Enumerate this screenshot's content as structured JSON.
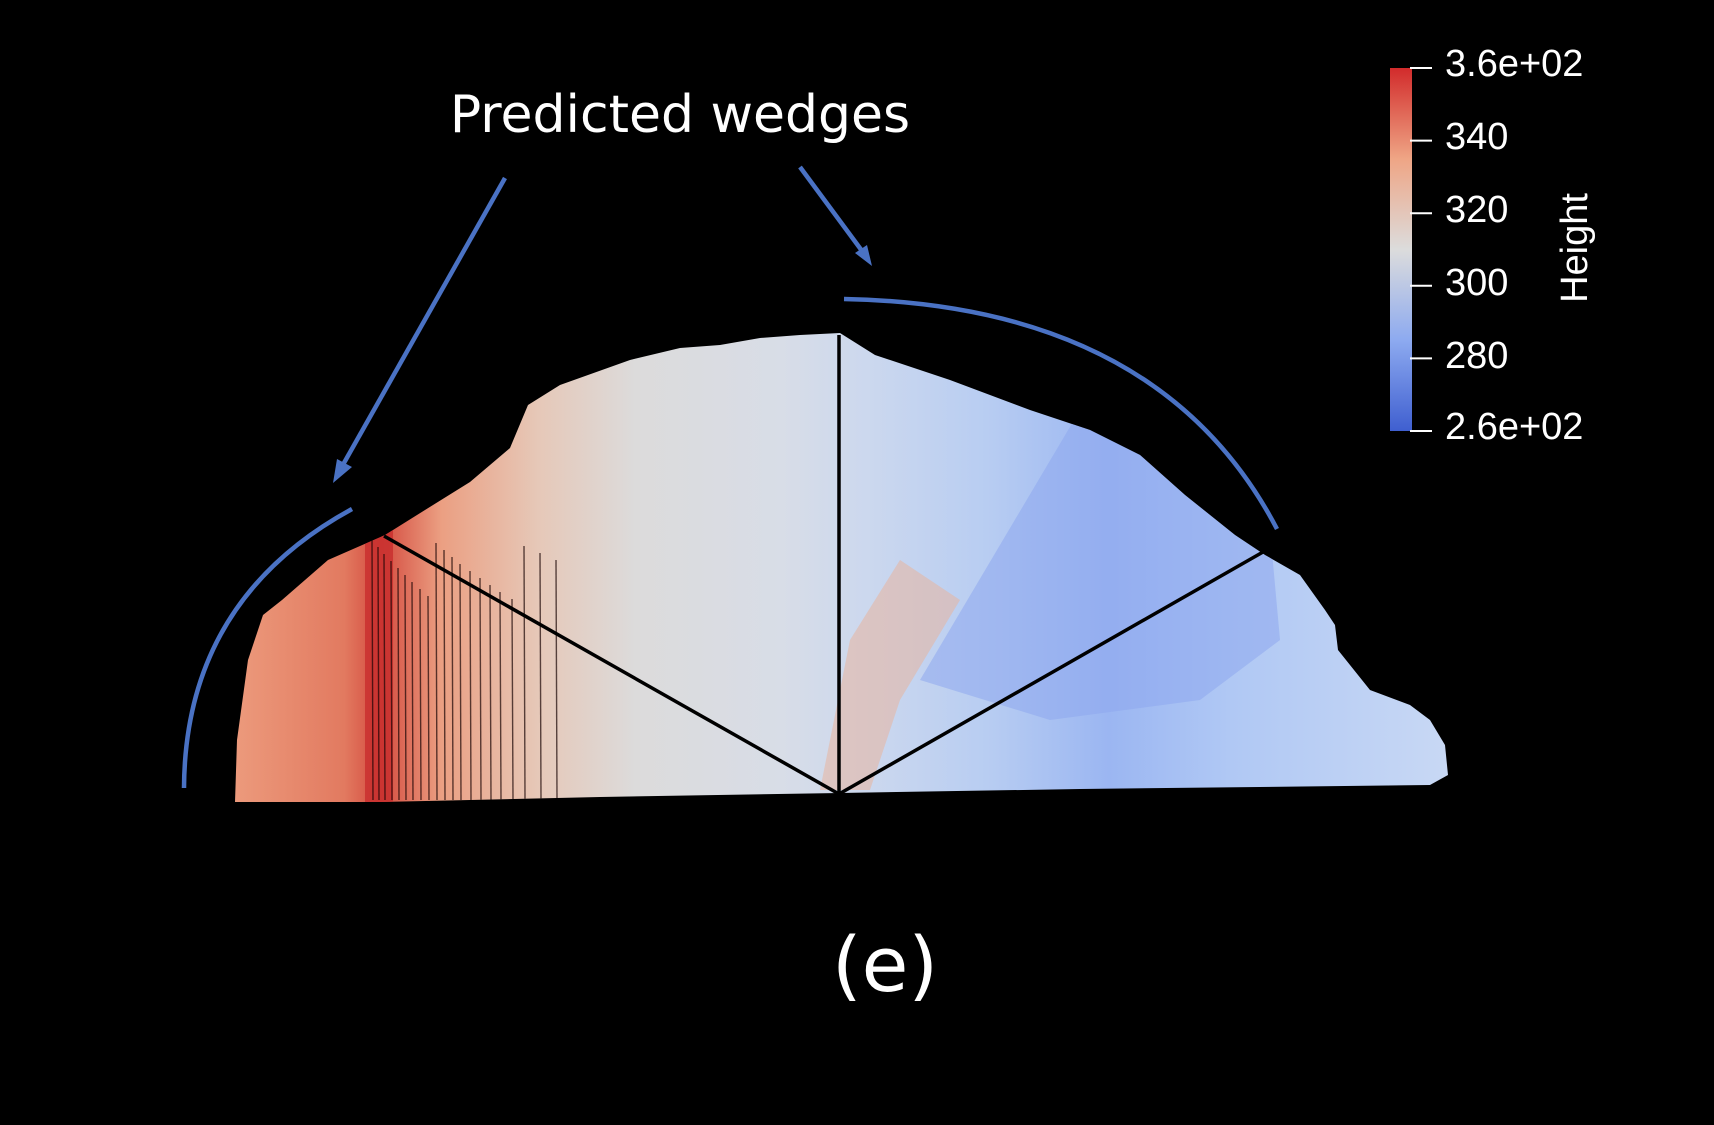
{
  "annotation": {
    "text": "Predicted wedges",
    "arrow_color": "#4a72c4"
  },
  "panel_label": "(e)",
  "colorbar": {
    "title": "Height",
    "colormap": "cool-to-warm",
    "min_color": "#3f5fd0",
    "mid_color": "#dcdcdc",
    "max_color": "#d22b2b",
    "range": [
      260,
      360
    ],
    "tick_labels": [
      "3.6e+02",
      "340",
      "320",
      "300",
      "280",
      "2.6e+02"
    ]
  },
  "wedge_boundary_color": "#000000",
  "background_color": "#000000"
}
